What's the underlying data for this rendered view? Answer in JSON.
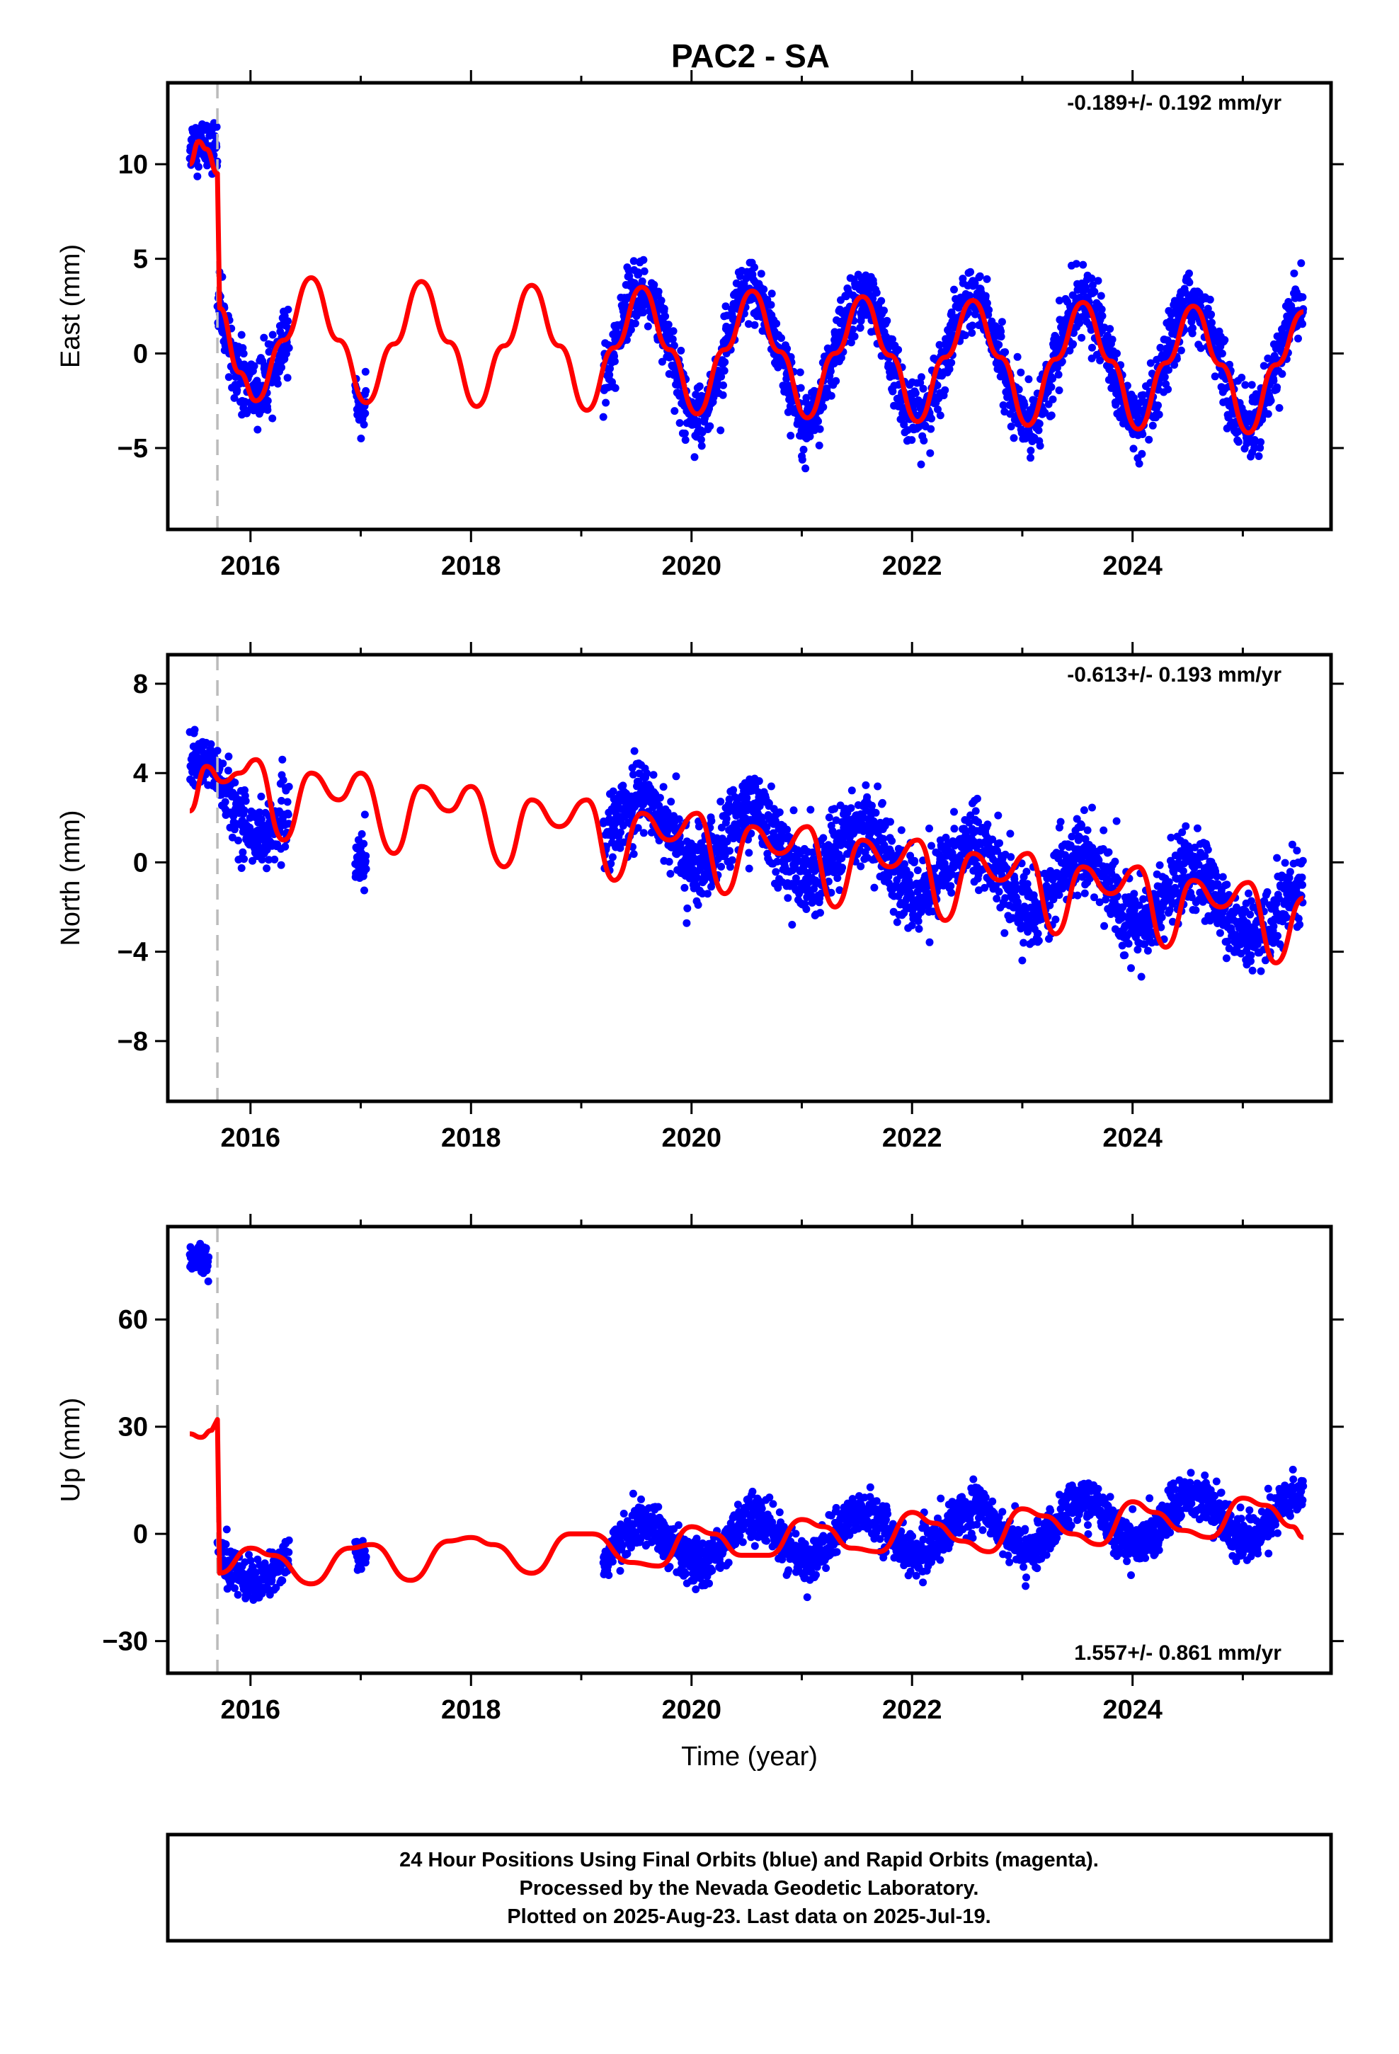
{
  "title": "PAC2 - SA",
  "colors": {
    "points": "#0000ff",
    "fit": "#ff0000",
    "break_line": "#bbbbbb",
    "frame": "#000000"
  },
  "chart_data": [
    {
      "type": "scatter",
      "panel": "east",
      "title": "",
      "xlabel": "",
      "ylabel": "East (mm)",
      "xlim": [
        2015.25,
        2025.8
      ],
      "ylim": [
        -9.3,
        14.3
      ],
      "x_ticks": [
        2016,
        2018,
        2020,
        2022,
        2024
      ],
      "x_tick_labels": [
        "2016",
        "2018",
        "2020",
        "2022",
        "2024"
      ],
      "y_ticks": [
        -5,
        0,
        5,
        10
      ],
      "y_tick_labels": [
        "−5",
        "0",
        "5",
        "10"
      ],
      "rate_label": "-0.189+/- 0.192 mm/yr",
      "equipment_break": 2015.7,
      "series": [
        {
          "kind": "points",
          "segments": [
            {
              "start": 2015.45,
              "end": 2015.7,
              "trend_start": 10.5,
              "trend_end": 10.5,
              "amplitude": 0.6,
              "noise": 1.1
            },
            {
              "start": 2015.7,
              "end": 2016.35,
              "trend_start": 0.8,
              "trend_end": 0.3,
              "amplitude": 2.6,
              "noise": 1.5
            },
            {
              "start": 2016.95,
              "end": 2017.05,
              "trend_start": 0.3,
              "trend_end": 0.3,
              "amplitude": 3.2,
              "noise": 1.0
            },
            {
              "start": 2019.2,
              "end": 2025.55,
              "trend_start": 0.2,
              "trend_end": -0.7,
              "amplitude": 3.2,
              "noise": 1.4
            }
          ]
        },
        {
          "kind": "fit",
          "x": [
            2015.45,
            2015.53,
            2015.6,
            2015.7,
            2015.72,
            2015.9,
            2016.05,
            2016.3,
            2016.55,
            2016.8,
            2017.05,
            2017.3,
            2017.55,
            2017.8,
            2018.05,
            2018.3,
            2018.55,
            2018.8,
            2019.05,
            2019.3,
            2019.55,
            2019.8,
            2020.05,
            2020.3,
            2020.55,
            2020.8,
            2021.05,
            2021.3,
            2021.55,
            2021.8,
            2022.05,
            2022.3,
            2022.55,
            2022.8,
            2023.05,
            2023.3,
            2023.55,
            2023.8,
            2024.05,
            2024.3,
            2024.55,
            2024.8,
            2025.05,
            2025.3,
            2025.55
          ],
          "y": [
            10.0,
            11.2,
            10.8,
            9.5,
            2.4,
            -1.0,
            -2.5,
            0.7,
            4.0,
            0.7,
            -2.6,
            0.5,
            3.8,
            0.6,
            -2.8,
            0.4,
            3.6,
            0.4,
            -3.0,
            0.3,
            3.5,
            0.2,
            -3.2,
            0.2,
            3.3,
            0.1,
            -3.4,
            0.0,
            3.0,
            -0.1,
            -3.6,
            -0.2,
            2.8,
            -0.2,
            -3.8,
            -0.3,
            2.7,
            -0.4,
            -4.0,
            -0.5,
            2.5,
            -0.6,
            -4.2,
            -0.6,
            2.2
          ]
        }
      ]
    },
    {
      "type": "scatter",
      "panel": "north",
      "title": "",
      "xlabel": "",
      "ylabel": "North (mm)",
      "xlim": [
        2015.25,
        2025.8
      ],
      "ylim": [
        -10.7,
        9.3
      ],
      "x_ticks": [
        2016,
        2018,
        2020,
        2022,
        2024
      ],
      "x_tick_labels": [
        "2016",
        "2018",
        "2020",
        "2022",
        "2024"
      ],
      "y_ticks": [
        -8,
        -4,
        0,
        4,
        8
      ],
      "y_tick_labels": [
        "−8",
        "−4",
        "0",
        "4",
        "8"
      ],
      "rate_label": "-0.613+/- 0.193 mm/yr",
      "equipment_break": 2015.7,
      "series": [
        {
          "kind": "points",
          "segments": [
            {
              "start": 2015.45,
              "end": 2015.7,
              "trend_start": 4.0,
              "trend_end": 3.9,
              "amplitude": 0.5,
              "noise": 1.0
            },
            {
              "start": 2015.7,
              "end": 2016.35,
              "trend_start": 3.2,
              "trend_end": 1.8,
              "amplitude": 1.2,
              "noise": 1.2
            },
            {
              "start": 2016.95,
              "end": 2017.05,
              "trend_start": 0.8,
              "trend_end": 0.8,
              "amplitude": 0.8,
              "noise": 1.0
            },
            {
              "start": 2019.2,
              "end": 2025.55,
              "trend_start": 1.8,
              "trend_end": -2.4,
              "amplitude": 1.4,
              "noise": 1.4
            }
          ]
        },
        {
          "kind": "fit",
          "x": [
            2015.45,
            2015.6,
            2015.75,
            2015.9,
            2016.05,
            2016.3,
            2016.55,
            2016.8,
            2017.0,
            2017.3,
            2017.55,
            2017.8,
            2018.0,
            2018.3,
            2018.55,
            2018.8,
            2019.05,
            2019.3,
            2019.55,
            2019.8,
            2020.05,
            2020.3,
            2020.55,
            2020.8,
            2021.05,
            2021.3,
            2021.55,
            2021.8,
            2022.05,
            2022.3,
            2022.55,
            2022.8,
            2023.05,
            2023.3,
            2023.55,
            2023.8,
            2024.05,
            2024.3,
            2024.55,
            2024.8,
            2025.05,
            2025.3,
            2025.55
          ],
          "y": [
            2.3,
            4.3,
            3.6,
            4.0,
            4.6,
            1.0,
            4.0,
            2.8,
            4.0,
            0.4,
            3.4,
            2.3,
            3.4,
            -0.2,
            2.8,
            1.6,
            2.8,
            -0.8,
            2.2,
            1.0,
            2.2,
            -1.4,
            1.6,
            0.4,
            1.6,
            -2.0,
            1.0,
            -0.2,
            1.0,
            -2.6,
            0.4,
            -0.8,
            0.4,
            -3.2,
            -0.2,
            -1.4,
            -0.2,
            -3.8,
            -0.8,
            -2.0,
            -0.9,
            -4.5,
            -1.6
          ]
        }
      ]
    },
    {
      "type": "scatter",
      "panel": "up",
      "title": "",
      "xlabel": "Time (year)",
      "ylabel": "Up (mm)",
      "xlim": [
        2015.25,
        2025.8
      ],
      "ylim": [
        -39,
        86
      ],
      "x_ticks": [
        2016,
        2018,
        2020,
        2022,
        2024
      ],
      "x_tick_labels": [
        "2016",
        "2018",
        "2020",
        "2022",
        "2024"
      ],
      "y_ticks": [
        -30,
        0,
        30,
        60
      ],
      "y_tick_labels": [
        "−30",
        "0",
        "30",
        "60"
      ],
      "rate_label": "1.557+/- 0.861 mm/yr",
      "equipment_break": 2015.7,
      "series": [
        {
          "kind": "points",
          "segments": [
            {
              "start": 2015.45,
              "end": 2015.62,
              "trend_start": 75,
              "trend_end": 75,
              "amplitude": 1.5,
              "noise": 3.5
            },
            {
              "start": 2015.7,
              "end": 2016.35,
              "trend_start": -8,
              "trend_end": -8,
              "amplitude": 5.0,
              "noise": 5.0
            },
            {
              "start": 2016.95,
              "end": 2017.05,
              "trend_start": -2,
              "trend_end": -2,
              "amplitude": 4.0,
              "noise": 4.0
            },
            {
              "start": 2019.2,
              "end": 2025.55,
              "trend_start": -4,
              "trend_end": 6,
              "amplitude": 6.5,
              "noise": 5.0
            }
          ]
        },
        {
          "kind": "fit",
          "x": [
            2015.45,
            2015.55,
            2015.65,
            2015.7,
            2015.72,
            2016.0,
            2016.2,
            2016.55,
            2016.9,
            2017.1,
            2017.45,
            2017.8,
            2018.0,
            2018.2,
            2018.55,
            2018.9,
            2019.1,
            2019.45,
            2019.7,
            2020.0,
            2020.2,
            2020.45,
            2020.7,
            2021.0,
            2021.2,
            2021.45,
            2021.7,
            2022.0,
            2022.2,
            2022.45,
            2022.7,
            2023.0,
            2023.2,
            2023.45,
            2023.7,
            2024.0,
            2024.2,
            2024.45,
            2024.7,
            2025.0,
            2025.2,
            2025.45,
            2025.55
          ],
          "y": [
            28,
            27,
            29,
            32,
            -11,
            -4,
            -6,
            -14,
            -4,
            -3,
            -13,
            -2,
            -1,
            -3,
            -11,
            0,
            0,
            -8,
            -9,
            2,
            0,
            -6,
            -6,
            4,
            2,
            -4,
            -5,
            6,
            3,
            -2,
            -5,
            7,
            5,
            0,
            -3,
            9,
            6,
            1,
            -1,
            10,
            8,
            2,
            -1
          ]
        }
      ]
    }
  ],
  "footer": {
    "lines": [
      "24 Hour Positions Using Final Orbits (blue) and Rapid Orbits (magenta).",
      "Processed by the Nevada Geodetic Laboratory.",
      "Plotted on 2025-Aug-23. Last data on 2025-Jul-19."
    ]
  }
}
